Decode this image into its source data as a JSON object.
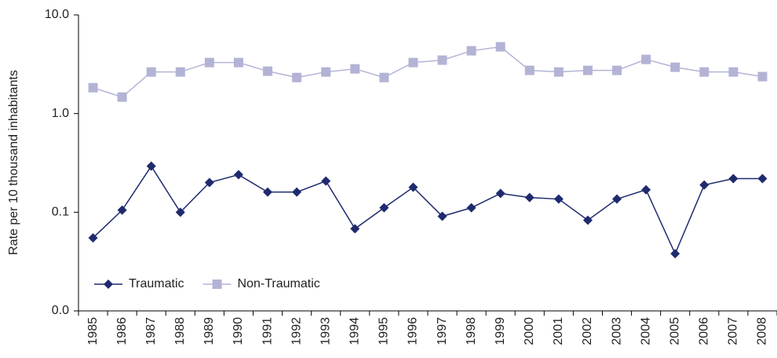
{
  "chart_data": {
    "type": "line",
    "y_label": "Rate per 10 thousand inhabitants",
    "categories": [
      "1985",
      "1986",
      "1987",
      "1988",
      "1989",
      "1990",
      "1991",
      "1992",
      "1993",
      "1994",
      "1995",
      "1996",
      "1997",
      "1998",
      "1999",
      "2000",
      "2001",
      "2002",
      "2003",
      "2004",
      "2005",
      "2006",
      "2007",
      "2008"
    ],
    "series": [
      {
        "name": "Traumatic",
        "color": "#1f2a6e",
        "marker": "diamond",
        "values": [
          0.055,
          0.105,
          0.293,
          0.1,
          0.2,
          0.24,
          0.16,
          0.16,
          0.207,
          0.068,
          0.111,
          0.179,
          0.091,
          0.111,
          0.155,
          0.141,
          0.136,
          0.083,
          0.136,
          0.169,
          0.038,
          0.189,
          0.219,
          0.219
        ]
      },
      {
        "name": "Non-Traumatic",
        "color": "#b3b3d6",
        "marker": "square",
        "values": [
          1.83,
          1.47,
          2.64,
          2.64,
          3.29,
          3.29,
          2.69,
          2.32,
          2.64,
          2.84,
          2.32,
          3.29,
          3.48,
          4.33,
          4.75,
          2.74,
          2.64,
          2.74,
          2.74,
          3.54,
          2.95,
          2.64,
          2.64,
          2.37
        ]
      }
    ],
    "ylim": [
      0.01,
      10
    ],
    "yticks": [
      {
        "value": 0.01,
        "label": "0.0"
      },
      {
        "value": 0.1,
        "label": "0.1"
      },
      {
        "value": 1,
        "label": "1.0"
      },
      {
        "value": 10,
        "label": "10.0"
      }
    ],
    "log_scale": true,
    "grid": false,
    "legend": "lower left"
  }
}
